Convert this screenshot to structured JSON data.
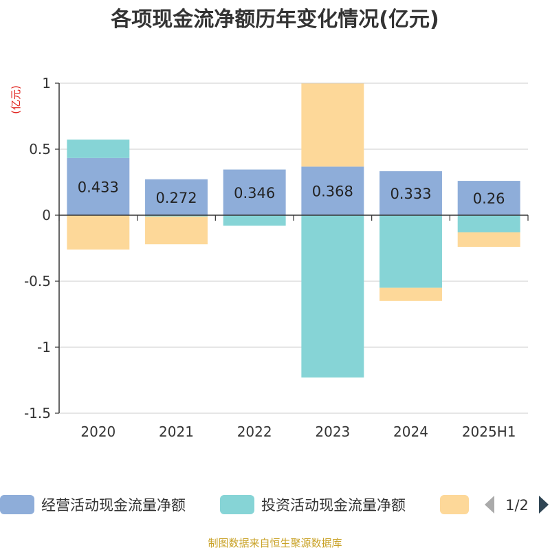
{
  "chart_data": {
    "type": "bar",
    "title": "各项现金流净额历年变化情况(亿元)",
    "unit_label": "(亿元)",
    "categories": [
      "2020",
      "2021",
      "2022",
      "2023",
      "2024",
      "2025H1"
    ],
    "ylim": [
      -1.5,
      1
    ],
    "yticks": [
      1,
      0.5,
      0,
      -0.5,
      -1,
      -1.5
    ],
    "ytick_labels": [
      "1",
      "0.5",
      "0",
      "-0.5",
      "-1",
      "-1.5"
    ],
    "grid": true,
    "stacked": true,
    "series": [
      {
        "name": "经营活动现金流量净额",
        "color": "#8eadd9",
        "values": [
          0.433,
          0.272,
          0.346,
          0.368,
          0.333,
          0.26
        ],
        "labels": [
          "0.433",
          "0.272",
          "0.346",
          "0.368",
          "0.333",
          "0.26"
        ]
      },
      {
        "name": "投资活动现金流量净额",
        "color": "#86d4d6",
        "values": [
          0.14,
          -0.01,
          -0.08,
          -1.23,
          -0.55,
          -0.13
        ]
      },
      {
        "color": "#fdd899",
        "values": [
          -0.26,
          -0.21,
          0,
          0.63,
          -0.1,
          -0.11
        ]
      }
    ],
    "legend_position": "bottom",
    "legend_page": "1/2",
    "source": "制图数据来自恒生聚源数据库"
  }
}
